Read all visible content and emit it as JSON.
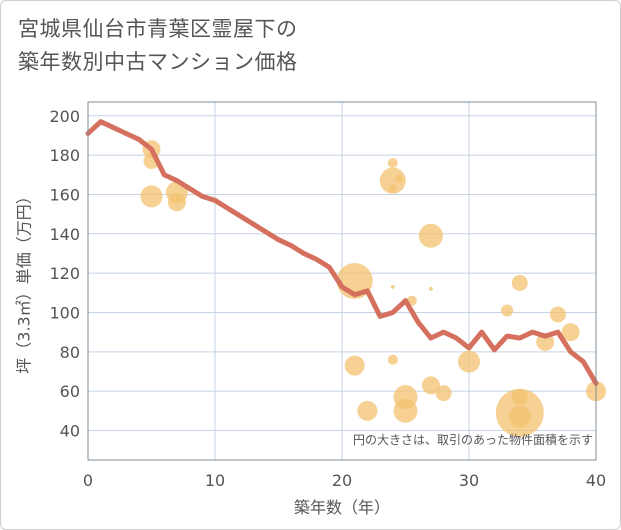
{
  "chart_data": {
    "type": "scatter",
    "title": "宮城県仙台市青葉区霊屋下の\n築年数別中古マンション価格",
    "xlabel": "築年数（年）",
    "ylabel": "坪（3.3㎡）単価（万円）",
    "xlim": [
      0,
      40
    ],
    "ylim": [
      25,
      207
    ],
    "xticks": [
      0,
      10,
      20,
      30,
      40
    ],
    "yticks": [
      40,
      60,
      80,
      100,
      120,
      140,
      160,
      180,
      200
    ],
    "grid": true,
    "note": "円の大きさは、取引のあった物件面積を示す",
    "colors": {
      "bubble": "#f3c26f",
      "line": "#d5705f",
      "grid": "#c5d3e3",
      "frame": "#7f8c9a"
    },
    "series": [
      {
        "type": "scatter",
        "points": [
          {
            "x": 5,
            "y": 183,
            "r": 9
          },
          {
            "x": 5,
            "y": 177,
            "r": 8
          },
          {
            "x": 5,
            "y": 159,
            "r": 11
          },
          {
            "x": 7,
            "y": 161,
            "r": 11
          },
          {
            "x": 7,
            "y": 156,
            "r": 9
          },
          {
            "x": 24,
            "y": 176,
            "r": 5
          },
          {
            "x": 24,
            "y": 167,
            "r": 13
          },
          {
            "x": 24,
            "y": 163,
            "r": 4
          },
          {
            "x": 24.5,
            "y": 168,
            "r": 4
          },
          {
            "x": 27,
            "y": 139,
            "r": 12
          },
          {
            "x": 21,
            "y": 116,
            "r": 18
          },
          {
            "x": 24,
            "y": 113,
            "r": 2
          },
          {
            "x": 27,
            "y": 112,
            "r": 2
          },
          {
            "x": 25.5,
            "y": 106,
            "r": 5
          },
          {
            "x": 34,
            "y": 115,
            "r": 8
          },
          {
            "x": 33,
            "y": 101,
            "r": 6
          },
          {
            "x": 37,
            "y": 99,
            "r": 8
          },
          {
            "x": 38,
            "y": 90,
            "r": 9
          },
          {
            "x": 36,
            "y": 85,
            "r": 9
          },
          {
            "x": 24,
            "y": 76,
            "r": 5
          },
          {
            "x": 21,
            "y": 73,
            "r": 10
          },
          {
            "x": 30,
            "y": 75,
            "r": 11
          },
          {
            "x": 27,
            "y": 63,
            "r": 9
          },
          {
            "x": 25,
            "y": 57,
            "r": 12
          },
          {
            "x": 28,
            "y": 59,
            "r": 8
          },
          {
            "x": 25,
            "y": 50,
            "r": 12
          },
          {
            "x": 22,
            "y": 50,
            "r": 10
          },
          {
            "x": 34,
            "y": 57,
            "r": 8
          },
          {
            "x": 34,
            "y": 49,
            "r": 24
          },
          {
            "x": 34,
            "y": 47,
            "r": 11
          },
          {
            "x": 40,
            "y": 60,
            "r": 10
          }
        ]
      },
      {
        "type": "line",
        "x": [
          0,
          1,
          2,
          3,
          4,
          5,
          6,
          7,
          8,
          9,
          10,
          11,
          12,
          13,
          14,
          15,
          16,
          17,
          18,
          19,
          20,
          21,
          22,
          23,
          24,
          25,
          26,
          27,
          28,
          29,
          30,
          31,
          32,
          33,
          34,
          35,
          36,
          37,
          38,
          39,
          40
        ],
        "y": [
          191,
          197,
          194,
          191,
          188,
          183,
          170,
          167,
          163,
          159,
          157,
          153,
          149,
          145,
          141,
          137,
          134,
          130,
          127,
          123,
          113,
          109,
          111,
          98,
          100,
          106,
          95,
          87,
          90,
          87,
          82,
          90,
          81,
          88,
          87,
          90,
          88,
          90,
          80,
          75,
          64
        ]
      }
    ]
  }
}
